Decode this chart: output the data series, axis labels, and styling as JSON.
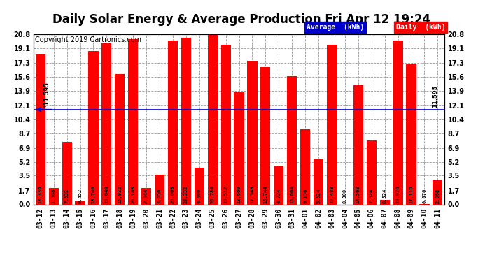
{
  "title": "Daily Solar Energy & Average Production Fri Apr 12 19:24",
  "copyright": "Copyright 2019 Cartronics.com",
  "categories": [
    "03-12",
    "03-13",
    "03-14",
    "03-15",
    "03-16",
    "03-17",
    "03-18",
    "03-19",
    "03-20",
    "03-21",
    "03-22",
    "03-23",
    "03-24",
    "03-25",
    "03-26",
    "03-27",
    "03-28",
    "03-29",
    "03-30",
    "03-31",
    "04-01",
    "04-02",
    "04-03",
    "04-04",
    "04-05",
    "04-06",
    "04-07",
    "04-08",
    "04-09",
    "04-10",
    "04-11"
  ],
  "values": [
    18.336,
    1.968,
    7.632,
    0.452,
    18.74,
    19.64,
    15.932,
    20.188,
    2.044,
    3.656,
    20.008,
    20.332,
    4.46,
    20.784,
    19.512,
    13.66,
    17.548,
    16.744,
    4.724,
    15.664,
    9.156,
    5.624,
    19.488,
    0.0,
    14.568,
    7.824,
    0.524,
    19.976,
    17.116,
    0.076,
    2.968
  ],
  "bar_color": "#ff0000",
  "average_value": 11.595,
  "average_line_color": "#0000cc",
  "ylim": [
    0.0,
    20.8
  ],
  "yticks": [
    0.0,
    1.7,
    3.5,
    5.2,
    6.9,
    8.7,
    10.4,
    12.1,
    13.9,
    15.6,
    17.3,
    19.1,
    20.8
  ],
  "bg_color": "#ffffff",
  "grid_color": "#999999",
  "bar_text_color": "#000000",
  "title_fontsize": 12,
  "copyright_fontsize": 7,
  "tick_fontsize": 7,
  "bar_label_fontsize": 5,
  "legend_avg_bg": "#0000cc",
  "legend_daily_bg": "#ff0000",
  "legend_text_color": "#ffffff"
}
